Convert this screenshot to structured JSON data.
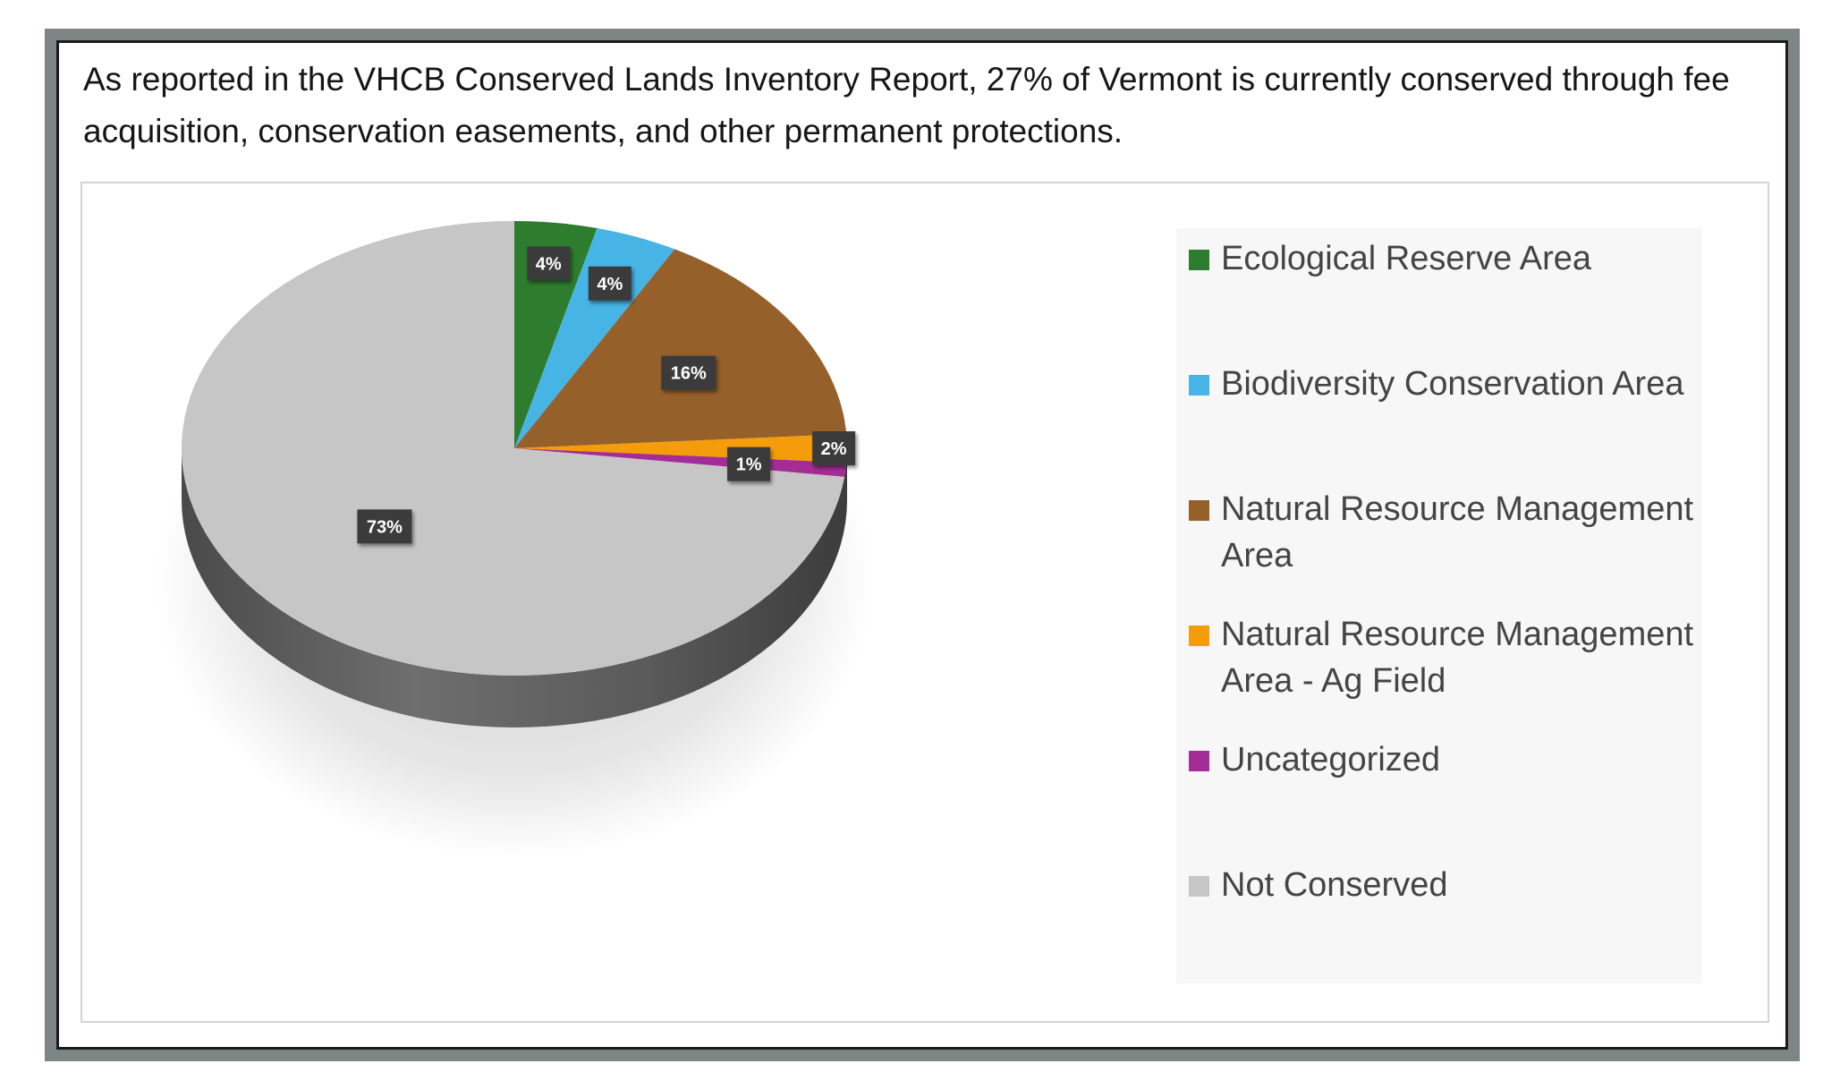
{
  "caption": "As reported in the VHCB Conserved Lands Inventory Report, 27% of Vermont is currently conserved through fee acquisition, conservation easements, and other permanent protections.",
  "chart_data": {
    "type": "pie",
    "style": "3d",
    "title": "",
    "legend_position": "right",
    "categories": [
      "Ecological Reserve Area",
      "Biodiversity Conservation Area",
      "Natural Resource Management Area",
      "Natural Resource Management Area - Ag Field",
      "Uncategorized",
      "Not Conserved"
    ],
    "values": [
      4,
      4,
      16,
      2,
      1,
      73
    ],
    "labels": [
      "4%",
      "4%",
      "16%",
      "2%",
      "1%",
      "73%"
    ],
    "colors": [
      "#2e7d2e",
      "#47b4e6",
      "#96602b",
      "#f59c0b",
      "#a42d95",
      "#c6c6c6"
    ]
  }
}
